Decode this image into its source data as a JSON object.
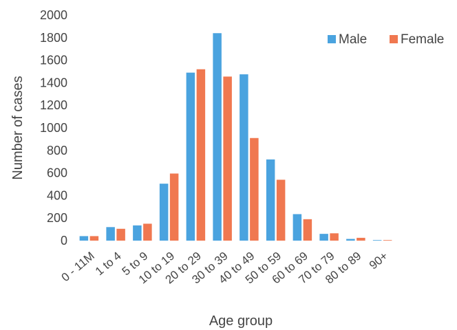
{
  "chart_data": {
    "type": "bar",
    "title": "",
    "xlabel": "Age group",
    "ylabel": "Number of cases",
    "ylim": [
      0,
      2000
    ],
    "yticks": [
      0,
      200,
      400,
      600,
      800,
      1000,
      1200,
      1400,
      1600,
      1800,
      2000
    ],
    "categories": [
      "0 - 11M",
      "1 to 4",
      "5 to 9",
      "10 to 19",
      "20 to 29",
      "30 to 39",
      "40 to 49",
      "50 to 59",
      "60 to 69",
      "70 to 79",
      "80 to 89",
      "90+"
    ],
    "series": [
      {
        "name": "Male",
        "color": "#4aa3df",
        "values": [
          40,
          120,
          135,
          505,
          1490,
          1840,
          1475,
          720,
          235,
          60,
          15,
          5
        ]
      },
      {
        "name": "Female",
        "color": "#f07850",
        "values": [
          40,
          105,
          150,
          595,
          1520,
          1455,
          910,
          540,
          190,
          65,
          25,
          5
        ]
      }
    ],
    "grid": false,
    "legend_position": "top-right"
  }
}
